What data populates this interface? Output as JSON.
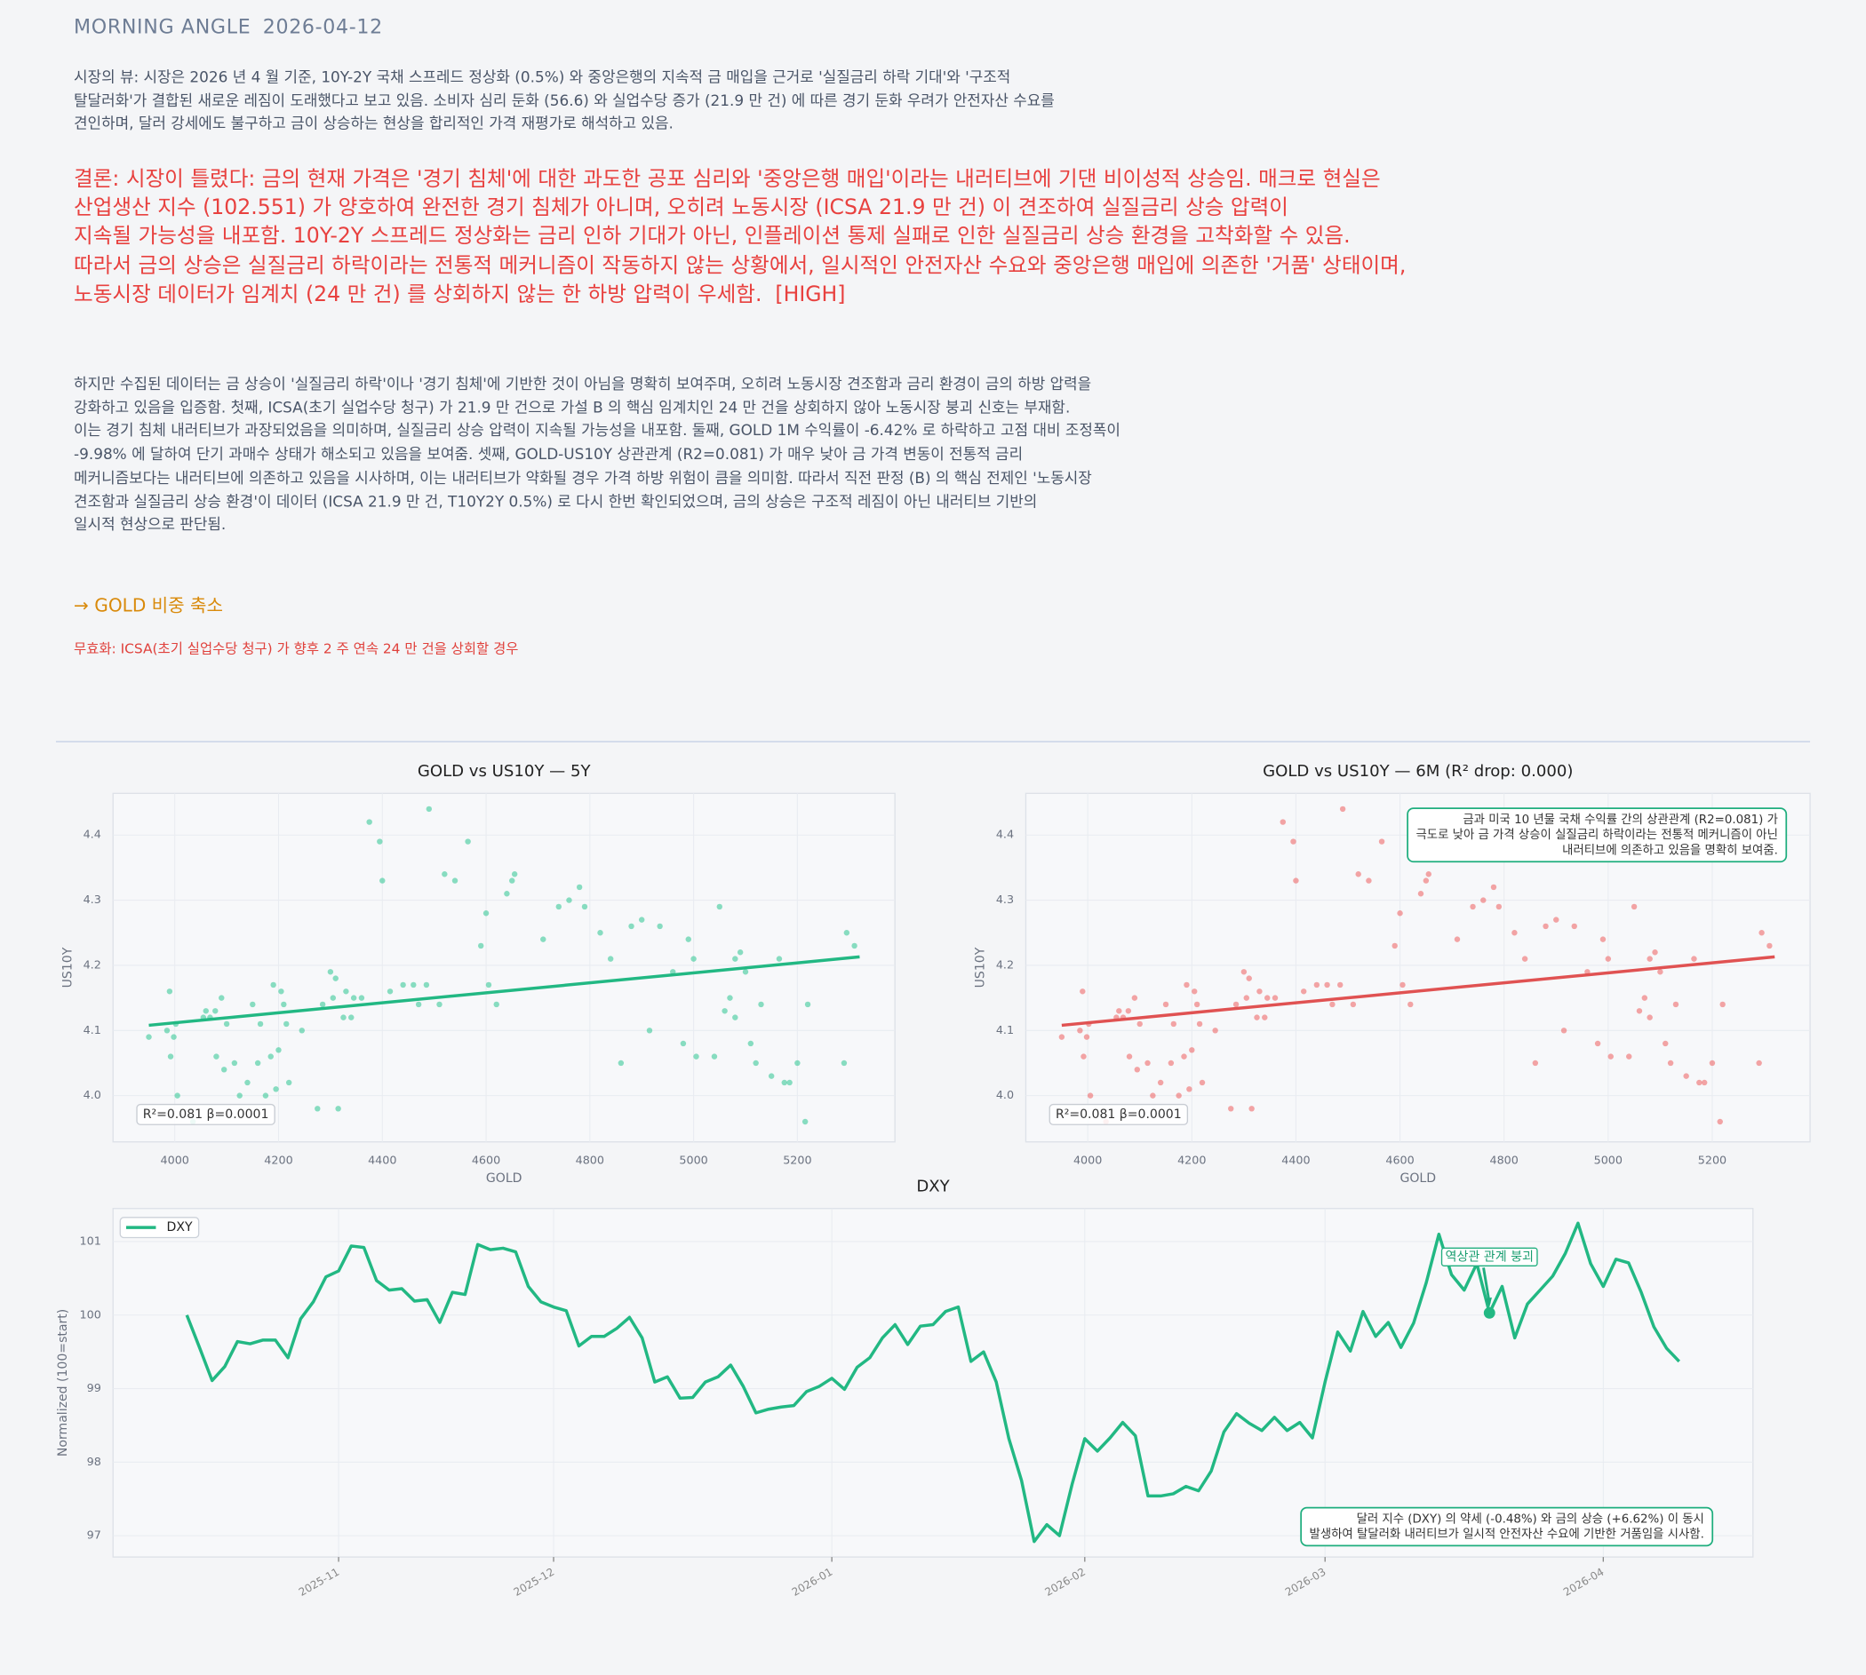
{
  "header": {
    "title": "MORNING ANGLE",
    "date": "2026-04-12"
  },
  "market_view": [
    "시장의 뷰: 시장은 2026 년 4 월 기준, 10Y-2Y 국채 스프레드 정상화 (0.5%) 와 중앙은행의 지속적 금 매입을 근거로 '실질금리 하락 기대'와 '구조적",
    "탈달러화'가 결합된 새로운 레짐이 도래했다고 보고 있음. 소비자 심리 둔화 (56.6) 와 실업수당 증가 (21.9 만 건) 에 따른 경기 둔화 우려가 안전자산 수요를",
    "견인하며, 달러 강세에도 불구하고 금이 상승하는 현상을 합리적인 가격 재평가로 해석하고 있음."
  ],
  "conclusion": [
    "결론: 시장이 틀렸다: 금의 현재 가격은 '경기 침체'에 대한 과도한 공포 심리와 '중앙은행 매입'이라는 내러티브에 기댄 비이성적 상승임. 매크로 현실은",
    "산업생산 지수 (102.551) 가 양호하여 완전한 경기 침체가 아니며, 오히려 노동시장 (ICSA 21.9 만 건) 이 견조하여 실질금리 상승 압력이",
    "지속될 가능성을 내포함. 10Y-2Y 스프레드 정상화는 금리 인하 기대가 아닌, 인플레이션 통제 실패로 인한 실질금리 상승 환경을 고착화할 수 있음.",
    "따라서 금의 상승은 실질금리 하락이라는 전통적 메커니즘이 작동하지 않는 상황에서, 일시적인 안전자산 수요와 중앙은행 매입에 의존한 '거품' 상태이며,",
    "노동시장 데이터가 임계치 (24 만 건) 를 상회하지 않는 한 하방 압력이 우세함.  [HIGH]"
  ],
  "analysis": [
    "하지만 수집된 데이터는 금 상승이 '실질금리 하락'이나 '경기 침체'에 기반한 것이 아님을 명확히 보여주며, 오히려 노동시장 견조함과 금리 환경이 금의 하방 압력을",
    "강화하고 있음을 입증함. 첫째, ICSA(초기 실업수당 청구) 가 21.9 만 건으로 가설 B 의 핵심 임계치인 24 만 건을 상회하지 않아 노동시장 붕괴 신호는 부재함.",
    "이는 경기 침체 내러티브가 과장되었음을 의미하며, 실질금리 상승 압력이 지속될 가능성을 내포함. 둘째, GOLD 1M 수익률이 -6.42% 로 하락하고 고점 대비 조정폭이",
    "-9.98% 에 달하여 단기 과매수 상태가 해소되고 있음을 보여줌. 셋째, GOLD-US10Y 상관관계 (R2=0.081) 가 매우 낮아 금 가격 변동이 전통적 금리",
    "메커니즘보다는 내러티브에 의존하고 있음을 시사하며, 이는 내러티브가 약화될 경우 가격 하방 위험이 큼을 의미함. 따라서 직전 판정 (B) 의 핵심 전제인 '노동시장",
    "견조함과 실질금리 상승 환경'이 데이터 (ICSA 21.9 만 건, T10Y2Y 0.5%) 로 다시 한번 확인되었으며, 금의 상승은 구조적 레짐이 아닌 내러티브 기반의",
    "일시적 현상으로 판단됨."
  ],
  "action": "→ GOLD 비중 축소",
  "invalidation": "무효화: ICSA(초기 실업수당 청구) 가 향후 2 주 연속 24 만 건을 상회할 경우",
  "chart_data": [
    {
      "type": "scatter",
      "title": "GOLD vs US10Y — 5Y",
      "x_label": "GOLD",
      "y_label": "US10Y",
      "color": "#3cc99a",
      "trend_color": "#22b883",
      "grid": true,
      "xlim": [
        3881,
        5388
      ],
      "ylim": [
        3.929,
        4.464
      ],
      "xticks": [
        4000,
        4200,
        4400,
        4600,
        4800,
        5000,
        5200
      ],
      "yticks": [
        {
          "value": 4,
          "label": "4.0"
        },
        4.1,
        4.2,
        4.3,
        4.4
      ],
      "x": [
        3950,
        3985,
        3990,
        3992,
        3998,
        4002,
        4005,
        4035,
        4055,
        4060,
        4068,
        4078,
        4080,
        4090,
        4095,
        4100,
        4115,
        4125,
        4140,
        4150,
        4160,
        4165,
        4175,
        4185,
        4190,
        4195,
        4200,
        4205,
        4210,
        4215,
        4220,
        4245,
        4275,
        4285,
        4300,
        4305,
        4310,
        4315,
        4325,
        4330,
        4340,
        4345,
        4360,
        4375,
        4395,
        4400,
        4415,
        4440,
        4460,
        4470,
        4485,
        4490,
        4510,
        4520,
        4540,
        4565,
        4590,
        4600,
        4605,
        4620,
        4640,
        4650,
        4655,
        4710,
        4740,
        4760,
        4780,
        4790,
        4820,
        4840,
        4860,
        4880,
        4900,
        4915,
        4935,
        4960,
        4980,
        4990,
        5000,
        5005,
        5040,
        5050,
        5060,
        5070,
        5080,
        5080,
        5090,
        5100,
        5110,
        5120,
        5130,
        5150,
        5165,
        5175,
        5185,
        5200,
        5215,
        5220,
        5290,
        5295,
        5310
      ],
      "y": [
        4.09,
        4.1,
        4.16,
        4.06,
        4.09,
        4.11,
        4.0,
        3.96,
        4.12,
        4.13,
        4.12,
        4.13,
        4.06,
        4.15,
        4.04,
        4.11,
        4.05,
        4.0,
        4.02,
        4.14,
        4.05,
        4.11,
        4.0,
        4.06,
        4.17,
        4.01,
        4.07,
        4.16,
        4.14,
        4.11,
        4.02,
        4.1,
        3.98,
        4.14,
        4.19,
        4.15,
        4.18,
        3.98,
        4.12,
        4.16,
        4.12,
        4.15,
        4.15,
        4.42,
        4.39,
        4.33,
        4.16,
        4.17,
        4.17,
        4.14,
        4.17,
        4.44,
        4.14,
        4.34,
        4.33,
        4.39,
        4.23,
        4.28,
        4.17,
        4.14,
        4.31,
        4.33,
        4.34,
        4.24,
        4.29,
        4.3,
        4.32,
        4.29,
        4.25,
        4.21,
        4.05,
        4.26,
        4.27,
        4.1,
        4.26,
        4.19,
        4.08,
        4.24,
        4.21,
        4.06,
        4.06,
        4.29,
        4.13,
        4.15,
        4.21,
        4.12,
        4.22,
        4.19,
        4.08,
        4.05,
        4.14,
        4.03,
        4.21,
        4.02,
        4.02,
        4.05,
        3.96,
        4.14,
        4.05,
        4.25,
        4.23
      ],
      "trend": {
        "x": [
          3950,
          5320
        ],
        "y": [
          4.108,
          4.213
        ]
      },
      "stats": "R²=0.081  β=0.0001"
    },
    {
      "type": "scatter",
      "title": "GOLD vs US10Y — 6M (R² drop: 0.000)",
      "x_label": "GOLD",
      "y_label": "US10Y",
      "color": "#ef6b6b",
      "trend_color": "#e05252",
      "grid": true,
      "xlim": [
        3881,
        5388
      ],
      "ylim": [
        3.929,
        4.464
      ],
      "xticks": [
        4000,
        4200,
        4400,
        4600,
        4800,
        5000,
        5200
      ],
      "yticks": [
        {
          "value": 4,
          "label": "4.0"
        },
        4.1,
        4.2,
        4.3,
        4.4
      ],
      "x": [
        3950,
        3985,
        3990,
        3992,
        3998,
        4002,
        4005,
        4035,
        4055,
        4060,
        4068,
        4078,
        4080,
        4090,
        4095,
        4100,
        4115,
        4125,
        4140,
        4150,
        4160,
        4165,
        4175,
        4185,
        4190,
        4195,
        4200,
        4205,
        4210,
        4215,
        4220,
        4245,
        4275,
        4285,
        4300,
        4305,
        4310,
        4315,
        4325,
        4330,
        4340,
        4345,
        4360,
        4375,
        4395,
        4400,
        4415,
        4440,
        4460,
        4470,
        4485,
        4490,
        4510,
        4520,
        4540,
        4565,
        4590,
        4600,
        4605,
        4620,
        4640,
        4650,
        4655,
        4710,
        4740,
        4760,
        4780,
        4790,
        4820,
        4840,
        4860,
        4880,
        4900,
        4915,
        4935,
        4960,
        4980,
        4990,
        5000,
        5005,
        5040,
        5050,
        5060,
        5070,
        5080,
        5080,
        5090,
        5100,
        5110,
        5120,
        5130,
        5150,
        5165,
        5175,
        5185,
        5200,
        5215,
        5220,
        5290,
        5295,
        5310
      ],
      "y": [
        4.09,
        4.1,
        4.16,
        4.06,
        4.09,
        4.11,
        4.0,
        3.96,
        4.12,
        4.13,
        4.12,
        4.13,
        4.06,
        4.15,
        4.04,
        4.11,
        4.05,
        4.0,
        4.02,
        4.14,
        4.05,
        4.11,
        4.0,
        4.06,
        4.17,
        4.01,
        4.07,
        4.16,
        4.14,
        4.11,
        4.02,
        4.1,
        3.98,
        4.14,
        4.19,
        4.15,
        4.18,
        3.98,
        4.12,
        4.16,
        4.12,
        4.15,
        4.15,
        4.42,
        4.39,
        4.33,
        4.16,
        4.17,
        4.17,
        4.14,
        4.17,
        4.44,
        4.14,
        4.34,
        4.33,
        4.39,
        4.23,
        4.28,
        4.17,
        4.14,
        4.31,
        4.33,
        4.34,
        4.24,
        4.29,
        4.3,
        4.32,
        4.29,
        4.25,
        4.21,
        4.05,
        4.26,
        4.27,
        4.1,
        4.26,
        4.19,
        4.08,
        4.24,
        4.21,
        4.06,
        4.06,
        4.29,
        4.13,
        4.15,
        4.21,
        4.12,
        4.22,
        4.19,
        4.08,
        4.05,
        4.14,
        4.03,
        4.21,
        4.02,
        4.02,
        4.05,
        3.96,
        4.14,
        4.05,
        4.25,
        4.23
      ],
      "trend": {
        "x": [
          3950,
          5320
        ],
        "y": [
          4.108,
          4.213
        ]
      },
      "stats": "R²=0.081  β=0.0001",
      "note": [
        "금과 미국 10 년물 국채 수익률 간의 상관관계 (R2=0.081) 가",
        "극도로 낮아 금 가격 상승이 실질금리 하락이라는 전통적 메커니즘이 아닌",
        "내러티브에 의존하고 있음을 명확히 보여줌."
      ]
    },
    {
      "type": "line",
      "title": "DXY",
      "y_label": "Normalized (100=start)",
      "grid": true,
      "legend": "upper-left",
      "ylim": [
        96.71,
        101.45
      ],
      "yticks": [
        97,
        98,
        99,
        100,
        101
      ],
      "categories": [
        null,
        null,
        null,
        null,
        null,
        null,
        null,
        null,
        null,
        null,
        null,
        null,
        "2025-11",
        null,
        null,
        null,
        null,
        null,
        null,
        null,
        null,
        null,
        null,
        null,
        null,
        null,
        null,
        null,
        null,
        "2025-12",
        null,
        null,
        null,
        null,
        null,
        null,
        null,
        null,
        null,
        null,
        null,
        null,
        null,
        null,
        null,
        null,
        null,
        null,
        null,
        null,
        null,
        "2026-01",
        null,
        null,
        null,
        null,
        null,
        null,
        null,
        null,
        null,
        null,
        null,
        null,
        null,
        null,
        null,
        null,
        null,
        null,
        null,
        "2026-02",
        null,
        null,
        null,
        null,
        null,
        null,
        null,
        null,
        null,
        null,
        null,
        null,
        null,
        null,
        null,
        null,
        null,
        null,
        "2026-03",
        null,
        null,
        null,
        null,
        null,
        null,
        null,
        null,
        null,
        null,
        null,
        null,
        null,
        null,
        null,
        null,
        null,
        null,
        null,
        null,
        null,
        "2026-04",
        null,
        null,
        null,
        null,
        null,
        null
      ],
      "series": [
        {
          "name": "DXY",
          "color": "#22b883",
          "values": [
            100.0,
            99.56,
            99.11,
            99.3,
            99.64,
            99.61,
            99.66,
            99.66,
            99.42,
            99.95,
            100.18,
            100.52,
            100.6,
            100.94,
            100.92,
            100.47,
            100.34,
            100.36,
            100.19,
            100.21,
            99.9,
            100.31,
            100.28,
            100.96,
            100.89,
            100.91,
            100.86,
            100.39,
            100.18,
            100.11,
            100.06,
            99.58,
            99.71,
            99.71,
            99.82,
            99.97,
            99.69,
            99.09,
            99.16,
            98.87,
            98.88,
            99.09,
            99.16,
            99.32,
            99.03,
            98.67,
            98.72,
            98.75,
            98.77,
            98.96,
            99.03,
            99.14,
            98.99,
            99.29,
            99.42,
            99.69,
            99.87,
            99.6,
            99.85,
            99.87,
            100.05,
            100.11,
            99.37,
            99.5,
            99.09,
            98.32,
            97.75,
            96.92,
            97.15,
            97.0,
            97.7,
            98.32,
            98.15,
            98.33,
            98.54,
            98.36,
            97.54,
            97.54,
            97.57,
            97.67,
            97.61,
            97.88,
            98.41,
            98.66,
            98.53,
            98.43,
            98.61,
            98.43,
            98.54,
            98.33,
            99.09,
            99.77,
            99.51,
            100.05,
            99.71,
            99.9,
            99.56,
            99.89,
            100.44,
            101.1,
            100.55,
            100.34,
            100.7,
            100.03,
            100.39,
            99.69,
            100.15,
            100.34,
            100.53,
            100.84,
            101.25,
            100.7,
            100.39,
            100.76,
            100.71,
            100.31,
            99.84,
            99.55,
            99.37
          ]
        }
      ],
      "highlight": "역상관 관계 붕괴",
      "note": [
        "달러 지수 (DXY) 의 약세 (-0.48%) 와 금의 상승 (+6.62%) 이 동시",
        "발생하여 탈달러화 내러티브가 일시적 안전자산 수요에 기반한 거품임을 시사함."
      ]
    }
  ]
}
